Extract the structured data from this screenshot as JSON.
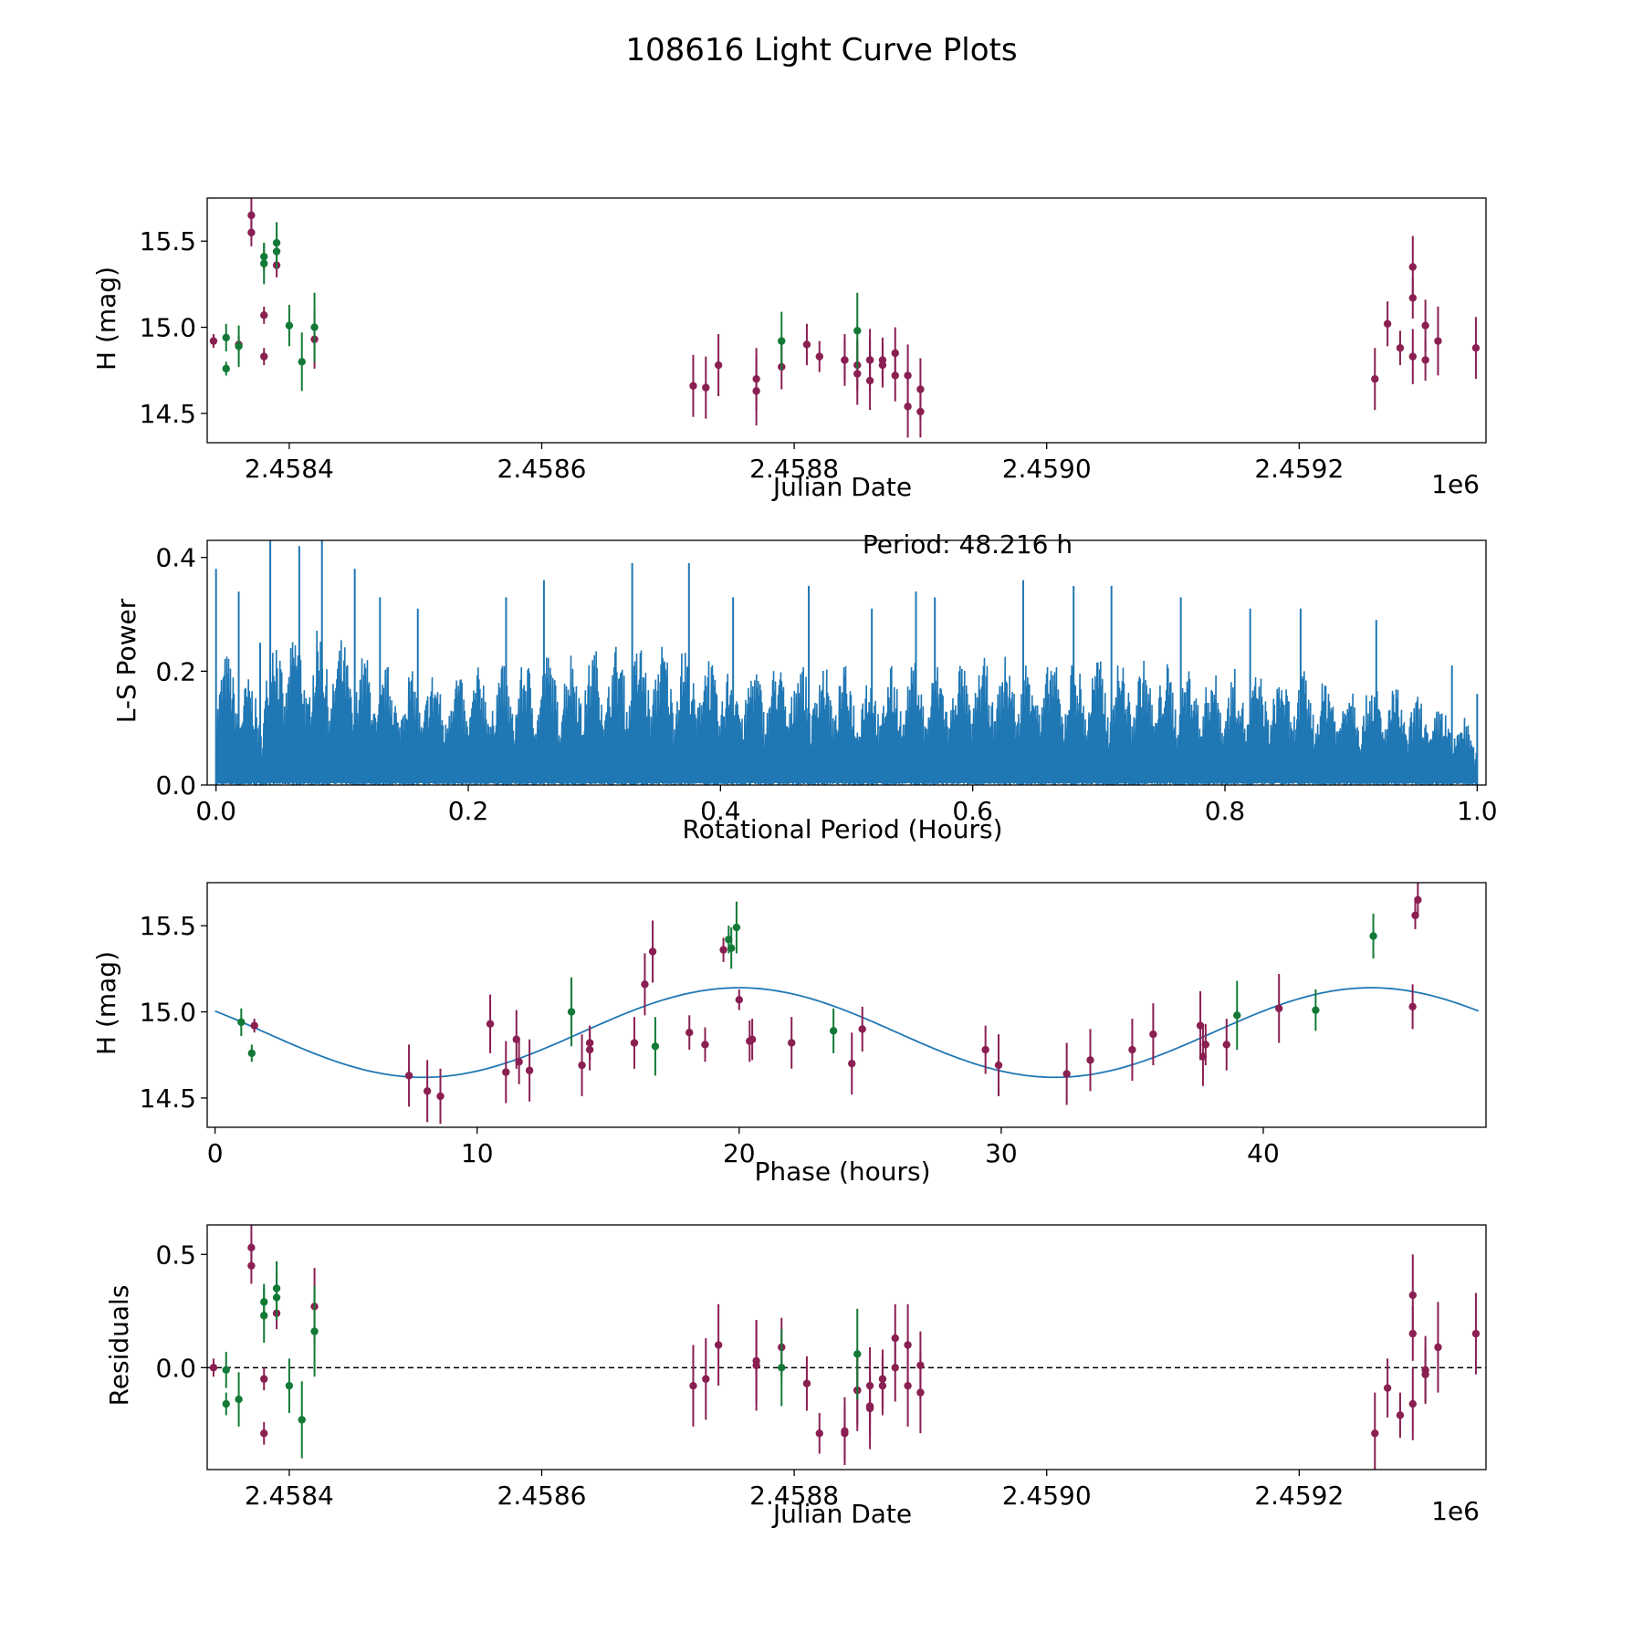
{
  "figure": {
    "title": "108616 Light Curve Plots"
  },
  "colors": {
    "series_a": "#8a1f52",
    "series_b": "#127a36",
    "curve": "#1f77b4",
    "axis": "#000000"
  },
  "chart_data": [
    {
      "type": "scatter",
      "name": "light-curve",
      "xlabel": "Julian Date",
      "ylabel": "H (mag)",
      "x_offset_label": "1e6",
      "xlim": [
        2.458335,
        2.459348
      ],
      "ylim": [
        14.33,
        15.75
      ],
      "xticks": [
        2.4584,
        2.4586,
        2.4588,
        2.459,
        2.4592
      ],
      "xtick_labels": [
        "2.4584",
        "2.4586",
        "2.4588",
        "2.4590",
        "2.4592"
      ],
      "yticks": [
        14.5,
        15.0,
        15.5
      ],
      "ytick_labels": [
        "14.5",
        "15.0",
        "15.5"
      ],
      "series": [
        {
          "name": "filter-a",
          "color": "#8a1f52",
          "points": [
            [
              2.45834,
              14.92,
              0.04
            ],
            [
              2.45836,
              14.9,
              0.05
            ],
            [
              2.45837,
              15.65,
              0.1
            ],
            [
              2.45837,
              15.55,
              0.08
            ],
            [
              2.45838,
              15.07,
              0.05
            ],
            [
              2.45838,
              14.83,
              0.05
            ],
            [
              2.45839,
              15.36,
              0.07
            ],
            [
              2.45842,
              14.93,
              0.17
            ],
            [
              2.45872,
              14.66,
              0.18
            ],
            [
              2.45873,
              14.65,
              0.18
            ],
            [
              2.45874,
              14.78,
              0.18
            ],
            [
              2.45877,
              14.7,
              0.18
            ],
            [
              2.45877,
              14.63,
              0.2
            ],
            [
              2.45879,
              14.77,
              0.13
            ],
            [
              2.45881,
              14.9,
              0.12
            ],
            [
              2.45882,
              14.83,
              0.09
            ],
            [
              2.45884,
              14.81,
              0.12
            ],
            [
              2.45884,
              14.81,
              0.15
            ],
            [
              2.45885,
              14.73,
              0.18
            ],
            [
              2.45885,
              14.78,
              0.15
            ],
            [
              2.45886,
              14.81,
              0.13
            ],
            [
              2.45886,
              14.69,
              0.17
            ],
            [
              2.45886,
              14.81,
              0.18
            ],
            [
              2.45887,
              14.78,
              0.13
            ],
            [
              2.45887,
              14.81,
              0.13
            ],
            [
              2.45888,
              14.85,
              0.15
            ],
            [
              2.45888,
              14.72,
              0.15
            ],
            [
              2.45889,
              14.72,
              0.18
            ],
            [
              2.45889,
              14.54,
              0.18
            ],
            [
              2.4589,
              14.51,
              0.15
            ],
            [
              2.4589,
              14.64,
              0.18
            ],
            [
              2.45926,
              14.7,
              0.18
            ],
            [
              2.45927,
              15.02,
              0.13
            ],
            [
              2.45928,
              14.88,
              0.1
            ],
            [
              2.45929,
              15.35,
              0.18
            ],
            [
              2.45929,
              15.17,
              0.12
            ],
            [
              2.45929,
              14.83,
              0.16
            ],
            [
              2.4593,
              15.01,
              0.15
            ],
            [
              2.4593,
              14.81,
              0.12
            ],
            [
              2.45931,
              14.92,
              0.2
            ],
            [
              2.45934,
              14.88,
              0.18
            ]
          ]
        },
        {
          "name": "filter-b",
          "color": "#127a36",
          "points": [
            [
              2.45835,
              14.76,
              0.04
            ],
            [
              2.45835,
              14.94,
              0.08
            ],
            [
              2.45836,
              14.89,
              0.12
            ],
            [
              2.45838,
              15.41,
              0.08
            ],
            [
              2.45838,
              15.37,
              0.12
            ],
            [
              2.45839,
              15.49,
              0.12
            ],
            [
              2.45839,
              15.44,
              0.1
            ],
            [
              2.4584,
              15.01,
              0.12
            ],
            [
              2.45841,
              14.8,
              0.17
            ],
            [
              2.45842,
              15.0,
              0.2
            ],
            [
              2.45879,
              14.92,
              0.17
            ],
            [
              2.45885,
              14.98,
              0.22
            ]
          ]
        }
      ]
    },
    {
      "type": "line",
      "name": "periodogram",
      "xlabel": "Rotational Period (Hours)",
      "ylabel": "L-S Power",
      "annotation": "Period: 48.216 h",
      "xlim": [
        -0.007,
        1.007
      ],
      "ylim": [
        0,
        0.43
      ],
      "xticks": [
        0,
        0.2,
        0.4,
        0.6,
        0.8,
        1.0
      ],
      "xtick_labels": [
        "0.0",
        "0.2",
        "0.4",
        "0.6",
        "0.8",
        "1.0"
      ],
      "yticks": [
        0,
        0.2,
        0.4
      ],
      "ytick_labels": [
        "0.0",
        "0.2",
        "0.4"
      ],
      "peaks": [
        [
          0.0,
          0.38
        ],
        [
          0.018,
          0.34
        ],
        [
          0.035,
          0.25
        ],
        [
          0.043,
          0.45
        ],
        [
          0.066,
          0.42
        ],
        [
          0.084,
          0.43
        ],
        [
          0.11,
          0.38
        ],
        [
          0.13,
          0.33
        ],
        [
          0.16,
          0.31
        ],
        [
          0.23,
          0.33
        ],
        [
          0.26,
          0.36
        ],
        [
          0.33,
          0.39
        ],
        [
          0.375,
          0.39
        ],
        [
          0.41,
          0.33
        ],
        [
          0.47,
          0.35
        ],
        [
          0.52,
          0.31
        ],
        [
          0.555,
          0.34
        ],
        [
          0.57,
          0.33
        ],
        [
          0.64,
          0.36
        ],
        [
          0.68,
          0.35
        ],
        [
          0.71,
          0.35
        ],
        [
          0.765,
          0.33
        ],
        [
          0.82,
          0.31
        ],
        [
          0.86,
          0.31
        ],
        [
          0.92,
          0.29
        ],
        [
          0.98,
          0.21
        ],
        [
          1.0,
          0.16
        ]
      ]
    },
    {
      "type": "scatter",
      "name": "phased-light-curve",
      "xlabel": "Phase (hours)",
      "ylabel": "H (mag)",
      "xlim": [
        -0.3,
        48.5
      ],
      "ylim": [
        14.33,
        15.75
      ],
      "xticks": [
        0,
        10,
        20,
        30,
        40
      ],
      "xtick_labels": [
        "0",
        "10",
        "20",
        "30",
        "40"
      ],
      "yticks": [
        14.5,
        15.0,
        15.5
      ],
      "ytick_labels": [
        "14.5",
        "15.0",
        "15.5"
      ],
      "model": {
        "type": "sinusoid",
        "mean": 14.88,
        "amplitude": 0.26,
        "period": 24.108,
        "peak_at": 20.0
      },
      "series": [
        {
          "name": "filter-a",
          "color": "#8a1f52",
          "points": [
            [
              1.5,
              14.92,
              0.04
            ],
            [
              7.4,
              14.63,
              0.18
            ],
            [
              8.1,
              14.54,
              0.18
            ],
            [
              8.6,
              14.51,
              0.16
            ],
            [
              10.5,
              14.93,
              0.17
            ],
            [
              11.1,
              14.65,
              0.18
            ],
            [
              11.5,
              14.84,
              0.17
            ],
            [
              11.6,
              14.71,
              0.13
            ],
            [
              12.0,
              14.66,
              0.18
            ],
            [
              14.0,
              14.69,
              0.18
            ],
            [
              14.3,
              14.82,
              0.1
            ],
            [
              14.3,
              14.78,
              0.12
            ],
            [
              16.0,
              14.82,
              0.15
            ],
            [
              16.4,
              15.16,
              0.18
            ],
            [
              16.7,
              15.35,
              0.18
            ],
            [
              18.1,
              14.88,
              0.1
            ],
            [
              18.7,
              14.81,
              0.1
            ],
            [
              19.4,
              15.36,
              0.07
            ],
            [
              20.0,
              15.07,
              0.06
            ],
            [
              20.4,
              14.83,
              0.12
            ],
            [
              20.5,
              14.84,
              0.12
            ],
            [
              22.0,
              14.82,
              0.15
            ],
            [
              24.3,
              14.7,
              0.18
            ],
            [
              24.7,
              14.9,
              0.13
            ],
            [
              29.4,
              14.78,
              0.14
            ],
            [
              29.9,
              14.69,
              0.18
            ],
            [
              32.5,
              14.64,
              0.18
            ],
            [
              33.4,
              14.72,
              0.18
            ],
            [
              35.0,
              14.78,
              0.18
            ],
            [
              35.8,
              14.87,
              0.18
            ],
            [
              37.6,
              14.92,
              0.2
            ],
            [
              37.7,
              14.74,
              0.17
            ],
            [
              37.8,
              14.81,
              0.12
            ],
            [
              38.6,
              14.81,
              0.15
            ],
            [
              40.6,
              15.02,
              0.2
            ],
            [
              45.7,
              15.03,
              0.13
            ],
            [
              45.8,
              15.56,
              0.08
            ],
            [
              45.9,
              15.65,
              0.1
            ]
          ]
        },
        {
          "name": "filter-b",
          "color": "#127a36",
          "points": [
            [
              1.0,
              14.94,
              0.08
            ],
            [
              1.4,
              14.76,
              0.05
            ],
            [
              13.6,
              15.0,
              0.2
            ],
            [
              16.8,
              14.8,
              0.17
            ],
            [
              19.6,
              15.42,
              0.08
            ],
            [
              19.7,
              15.37,
              0.12
            ],
            [
              19.9,
              15.49,
              0.15
            ],
            [
              23.6,
              14.89,
              0.13
            ],
            [
              39.0,
              14.98,
              0.2
            ],
            [
              42.0,
              15.01,
              0.12
            ],
            [
              44.2,
              15.44,
              0.13
            ]
          ]
        }
      ]
    },
    {
      "type": "scatter",
      "name": "residuals",
      "xlabel": "Julian Date",
      "ylabel": "Residuals",
      "x_offset_label": "1e6",
      "xlim": [
        2.458335,
        2.459348
      ],
      "ylim": [
        -0.45,
        0.63
      ],
      "xticks": [
        2.4584,
        2.4586,
        2.4588,
        2.459,
        2.4592
      ],
      "xtick_labels": [
        "2.4584",
        "2.4586",
        "2.4588",
        "2.4590",
        "2.4592"
      ],
      "yticks": [
        0.0,
        0.5
      ],
      "ytick_labels": [
        "0.0",
        "0.5"
      ],
      "zero_line": 0.0,
      "series": [
        {
          "name": "filter-a",
          "color": "#8a1f52",
          "points": [
            [
              2.45834,
              0.0,
              0.04
            ],
            [
              2.45837,
              0.53,
              0.1
            ],
            [
              2.45837,
              0.45,
              0.08
            ],
            [
              2.45838,
              -0.05,
              0.05
            ],
            [
              2.45838,
              -0.29,
              0.05
            ],
            [
              2.45839,
              0.24,
              0.07
            ],
            [
              2.45842,
              0.27,
              0.17
            ],
            [
              2.45872,
              -0.08,
              0.18
            ],
            [
              2.45873,
              -0.05,
              0.18
            ],
            [
              2.45874,
              0.1,
              0.18
            ],
            [
              2.45877,
              0.03,
              0.18
            ],
            [
              2.45877,
              0.01,
              0.2
            ],
            [
              2.45879,
              0.09,
              0.13
            ],
            [
              2.45881,
              -0.07,
              0.12
            ],
            [
              2.45882,
              -0.29,
              0.09
            ],
            [
              2.45884,
              -0.29,
              0.12
            ],
            [
              2.45884,
              -0.28,
              0.15
            ],
            [
              2.45885,
              -0.1,
              0.18
            ],
            [
              2.45885,
              -0.1,
              0.15
            ],
            [
              2.45886,
              -0.17,
              0.13
            ],
            [
              2.45886,
              -0.08,
              0.17
            ],
            [
              2.45886,
              -0.18,
              0.18
            ],
            [
              2.45887,
              -0.08,
              0.13
            ],
            [
              2.45887,
              -0.05,
              0.13
            ],
            [
              2.45888,
              0.13,
              0.15
            ],
            [
              2.45888,
              0.0,
              0.15
            ],
            [
              2.45889,
              0.1,
              0.18
            ],
            [
              2.45889,
              -0.08,
              0.18
            ],
            [
              2.4589,
              0.01,
              0.15
            ],
            [
              2.4589,
              -0.11,
              0.18
            ],
            [
              2.45926,
              -0.29,
              0.18
            ],
            [
              2.45927,
              -0.09,
              0.13
            ],
            [
              2.45928,
              -0.21,
              0.1
            ],
            [
              2.45929,
              0.32,
              0.18
            ],
            [
              2.45929,
              0.15,
              0.12
            ],
            [
              2.45929,
              -0.16,
              0.16
            ],
            [
              2.4593,
              -0.01,
              0.15
            ],
            [
              2.4593,
              -0.03,
              0.12
            ],
            [
              2.45931,
              0.09,
              0.2
            ],
            [
              2.45934,
              0.15,
              0.18
            ]
          ]
        },
        {
          "name": "filter-b",
          "color": "#127a36",
          "points": [
            [
              2.45835,
              -0.16,
              0.05
            ],
            [
              2.45835,
              -0.01,
              0.08
            ],
            [
              2.45836,
              -0.14,
              0.12
            ],
            [
              2.45838,
              0.29,
              0.08
            ],
            [
              2.45838,
              0.23,
              0.12
            ],
            [
              2.45839,
              0.35,
              0.12
            ],
            [
              2.45839,
              0.31,
              0.1
            ],
            [
              2.4584,
              -0.08,
              0.12
            ],
            [
              2.45841,
              -0.23,
              0.17
            ],
            [
              2.45842,
              0.16,
              0.2
            ],
            [
              2.45879,
              0.0,
              0.17
            ],
            [
              2.45885,
              0.06,
              0.2
            ]
          ]
        }
      ]
    }
  ]
}
